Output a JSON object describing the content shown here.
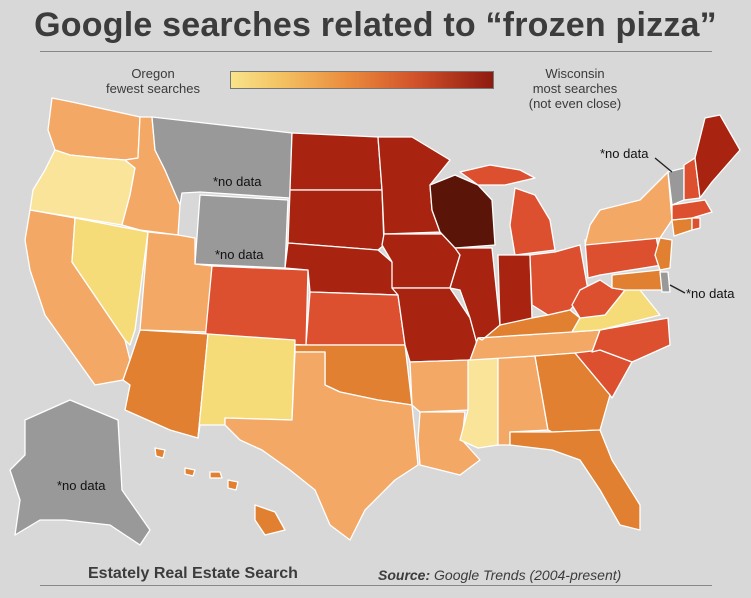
{
  "title": "Google searches related to “frozen pizza”",
  "legend": {
    "low_lines": [
      "Oregon",
      "fewest searches"
    ],
    "high_lines": [
      "Wisconsin",
      "most searches",
      "(not even close)"
    ],
    "low_color": "#f9e48a",
    "high_color": "#8e1a10"
  },
  "no_data_label": "*no data",
  "footer": {
    "credit": "Estately Real Estate Search",
    "source_prefix": "Source:",
    "source_text": "Google Trends (2004-present)"
  },
  "colors": {
    "no_data": "#999999",
    "level1": "#f6dc78",
    "level2": "#f9e49a",
    "level3": "#f3a866",
    "level4": "#e08030",
    "level5": "#dc5030",
    "level6": "#a82410",
    "level7": "#5a1408"
  }
}
